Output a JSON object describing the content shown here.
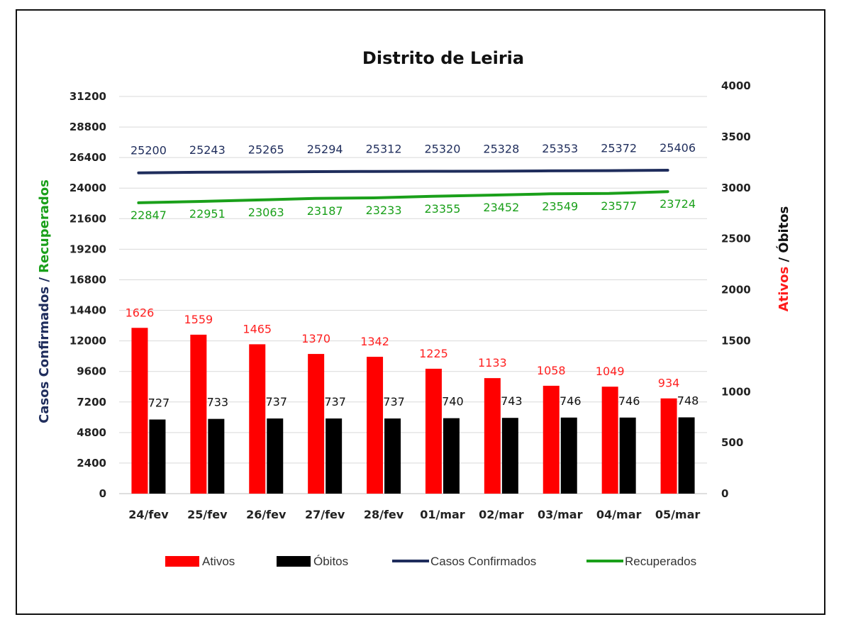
{
  "chart_data": {
    "type": "bar",
    "title": "Distrito de Leiria",
    "categories": [
      "24/fev",
      "25/fev",
      "26/fev",
      "27/fev",
      "28/fev",
      "01/mar",
      "02/mar",
      "03/mar",
      "04/mar",
      "05/mar"
    ],
    "left_axis": {
      "label_part1": "Casos Confirmados / ",
      "label_part2": "Recuperados",
      "ylim": [
        0,
        31200
      ],
      "ticks": [
        0,
        2400,
        4800,
        7200,
        9600,
        12000,
        14400,
        16800,
        19200,
        21600,
        24000,
        26400,
        28800,
        31200
      ]
    },
    "right_axis": {
      "label_part1": "Ativos",
      "label_part2": " / Óbitos",
      "ylim": [
        0,
        4000
      ],
      "ticks": [
        0,
        500,
        1000,
        1500,
        2000,
        2500,
        3000,
        3500,
        4000
      ]
    },
    "series": [
      {
        "name": "Ativos",
        "kind": "bar",
        "axis": "right",
        "color": "#ff0000",
        "label_color": "#ff2020",
        "values": [
          1626,
          1559,
          1465,
          1370,
          1342,
          1225,
          1133,
          1058,
          1049,
          934
        ]
      },
      {
        "name": "Óbitos",
        "kind": "bar",
        "axis": "right",
        "color": "#000000",
        "label_color": "#111111",
        "values": [
          727,
          733,
          737,
          737,
          737,
          740,
          743,
          746,
          746,
          748
        ]
      },
      {
        "name": "Casos Confirmados",
        "kind": "line",
        "axis": "left",
        "color": "#1f2d5c",
        "label_color": "#1f2d5c",
        "values": [
          25200,
          25243,
          25265,
          25294,
          25312,
          25320,
          25328,
          25353,
          25372,
          25406
        ]
      },
      {
        "name": "Recuperados",
        "kind": "line",
        "axis": "left",
        "color": "#1aa01a",
        "label_color": "#1aa01a",
        "values": [
          22847,
          22951,
          23063,
          23187,
          23233,
          23355,
          23452,
          23549,
          23577,
          23724
        ]
      }
    ],
    "grid": true,
    "legend_position": "bottom"
  }
}
